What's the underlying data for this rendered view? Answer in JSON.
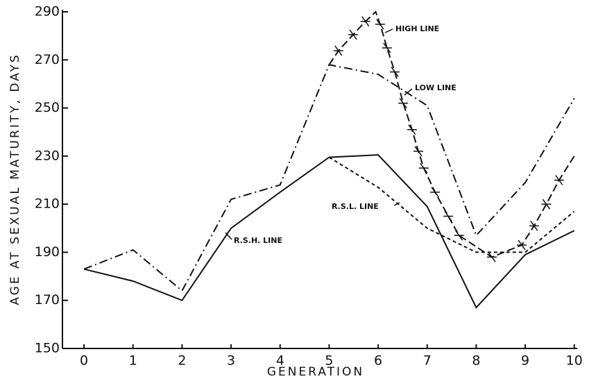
{
  "chart_data": {
    "type": "line",
    "ylabel": "AGE AT SEXUAL MATURITY, DAYS",
    "xlabel": "GENERATION",
    "x": [
      0,
      1,
      2,
      3,
      4,
      5,
      6,
      7,
      8,
      9,
      10
    ],
    "series": [
      {
        "name": "HIGH LINE",
        "color": "#111111",
        "dash": "solid",
        "values": [
          183,
          178,
          170,
          200,
          215,
          229.5,
          230.5,
          209,
          167,
          189,
          199
        ]
      },
      {
        "name": "LOW LINE",
        "color": "#111111",
        "dash": "dash-dot",
        "values": [
          183,
          191,
          174,
          212,
          218,
          268,
          264,
          251,
          197,
          219,
          254
        ]
      },
      {
        "name": "R.S.L. LINE",
        "color": "#111111",
        "dash": "dashed",
        "marker": "x",
        "x": [
          5,
          5.19,
          5.49,
          5.74,
          5.95,
          6.04,
          6.18,
          6.34,
          6.51,
          6.69,
          6.82,
          6.93,
          7.16,
          7.43,
          7.65,
          8.32,
          8.93,
          9.18,
          9.43,
          9.69,
          10
        ],
        "values": [
          268,
          273.8,
          280.5,
          286,
          290,
          284.8,
          275,
          265,
          252,
          241,
          232,
          225,
          215,
          205,
          197,
          188,
          193,
          201,
          210,
          220,
          230
        ]
      },
      {
        "name": "R.S.H. LINE",
        "color": "#111111",
        "dash": "short-dash",
        "values": [
          null,
          null,
          null,
          null,
          null,
          229.5,
          217,
          200,
          190,
          190,
          207
        ]
      }
    ],
    "xlim": [
      -0.44,
      10.06
    ],
    "ylim": [
      150,
      290
    ],
    "xticks": [
      0,
      1,
      2,
      3,
      4,
      5,
      6,
      7,
      8,
      9,
      10
    ],
    "yticks": [
      150,
      170,
      190,
      210,
      230,
      250,
      270,
      290
    ],
    "grid": false
  }
}
